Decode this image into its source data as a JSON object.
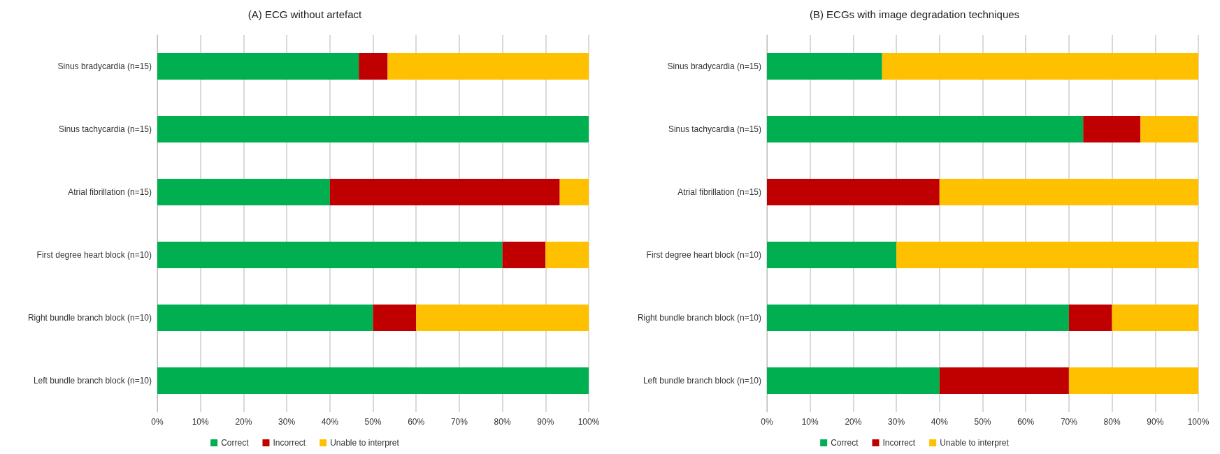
{
  "chart_data": [
    {
      "type": "bar",
      "title": "(A) ECG without artefact",
      "orientation": "horizontal",
      "stacked": true,
      "categories": [
        "Sinus bradycardia (n=15)",
        "Sinus tachycardia (n=15)",
        "Atrial fibrillation (n=15)",
        "First degree heart block (n=10)",
        "Right bundle branch block (n=10)",
        "Left bundle branch block (n=10)"
      ],
      "series": [
        {
          "name": "Correct",
          "color": "#00b050",
          "values": [
            46.7,
            100,
            40,
            80,
            50,
            100
          ]
        },
        {
          "name": "Incorrect",
          "color": "#c00000",
          "values": [
            6.7,
            0,
            53.3,
            10,
            10,
            0
          ]
        },
        {
          "name": "Unable to interpret",
          "color": "#ffc000",
          "values": [
            46.7,
            0,
            6.7,
            10,
            40,
            0
          ]
        }
      ],
      "xlim": [
        0,
        100
      ],
      "xticks": [
        {
          "value": 0,
          "label": "0%"
        },
        {
          "value": 10,
          "label": "10%"
        },
        {
          "value": 20,
          "label": "20%"
        },
        {
          "value": 30,
          "label": "30%"
        },
        {
          "value": 40,
          "label": "40%"
        },
        {
          "value": 50,
          "label": "50%"
        },
        {
          "value": 60,
          "label": "60%"
        },
        {
          "value": 70,
          "label": "70%"
        },
        {
          "value": 80,
          "label": "80%"
        },
        {
          "value": 90,
          "label": "90%"
        },
        {
          "value": 100,
          "label": "100%"
        }
      ],
      "grid": "x",
      "legend": "bottom"
    },
    {
      "type": "bar",
      "title": "(B) ECGs with image degradation techniques",
      "orientation": "horizontal",
      "stacked": true,
      "categories": [
        "Sinus bradycardia (n=15)",
        "Sinus tachycardia (n=15)",
        "Atrial fibrillation (n=15)",
        "First degree heart block (n=10)",
        "Right bundle branch block (n=10)",
        "Left bundle branch block (n=10)"
      ],
      "series": [
        {
          "name": "Correct",
          "color": "#00b050",
          "values": [
            26.7,
            73.3,
            0,
            30,
            70,
            40
          ]
        },
        {
          "name": "Incorrect",
          "color": "#c00000",
          "values": [
            0,
            13.3,
            40,
            0,
            10,
            30
          ]
        },
        {
          "name": "Unable to interpret",
          "color": "#ffc000",
          "values": [
            73.3,
            13.3,
            60,
            70,
            20,
            30
          ]
        }
      ],
      "xlim": [
        0,
        100
      ],
      "xticks": [
        {
          "value": 0,
          "label": "0%"
        },
        {
          "value": 10,
          "label": "10%"
        },
        {
          "value": 20,
          "label": "20%"
        },
        {
          "value": 30,
          "label": "30%"
        },
        {
          "value": 40,
          "label": "40%"
        },
        {
          "value": 50,
          "label": "50%"
        },
        {
          "value": 60,
          "label": "60%"
        },
        {
          "value": 70,
          "label": "70%"
        },
        {
          "value": 80,
          "label": "80%"
        },
        {
          "value": 90,
          "label": "90%"
        },
        {
          "value": 100,
          "label": "100%"
        }
      ],
      "grid": "x",
      "legend": "bottom"
    }
  ]
}
